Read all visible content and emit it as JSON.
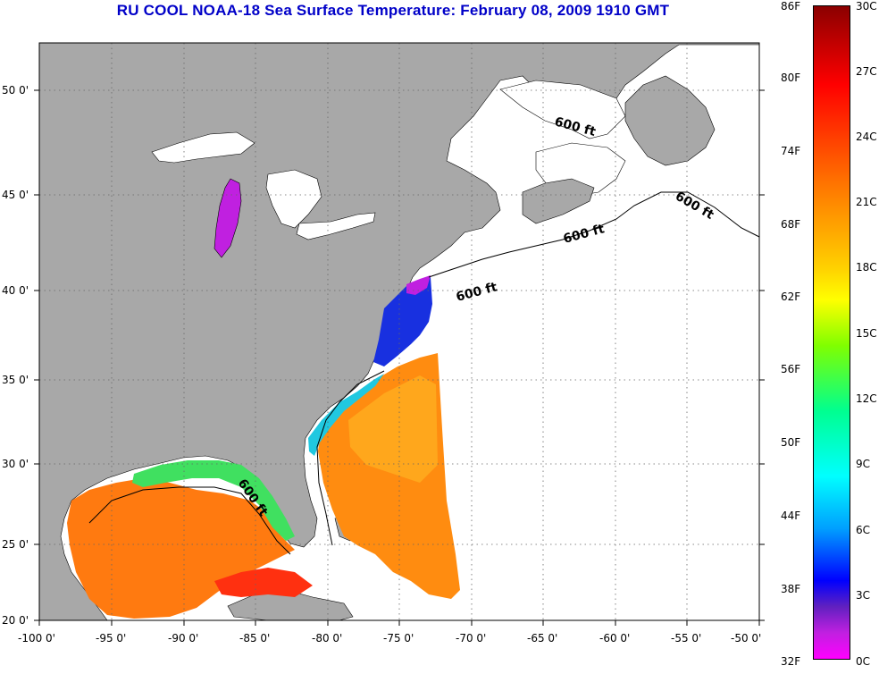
{
  "title": "RU COOL  NOAA-18  Sea Surface Temperature:  February 08, 2009 1910 GMT",
  "colors": {
    "land": "#a8a8a8",
    "title": "#0000c8",
    "background": "#ffffff"
  },
  "map": {
    "lon_range": [
      -100,
      -50
    ],
    "lat_range": [
      20,
      52.5
    ],
    "x_ticks": [
      "-100 0'",
      "-95 0'",
      "-90 0'",
      "-85 0'",
      "-80 0'",
      "-75 0'",
      "-70 0'",
      "-65 0'",
      "-60 0'",
      "-55 0'",
      "-50 0'"
    ],
    "y_ticks": [
      "50 0'",
      "45 0'",
      "40 0'",
      "35 0'",
      "30 0'",
      "25 0'",
      "20 0'"
    ],
    "contour_label": "600 ft",
    "grid": "dotted"
  },
  "colorbar": {
    "fahrenheit": [
      "86F",
      "80F",
      "74F",
      "68F",
      "62F",
      "56F",
      "50F",
      "44F",
      "38F",
      "32F"
    ],
    "celsius": [
      "30C",
      "27C",
      "24C",
      "21C",
      "18C",
      "15C",
      "12C",
      "9C",
      "6C",
      "3C",
      "0C"
    ],
    "range_c": [
      0,
      30
    ]
  }
}
